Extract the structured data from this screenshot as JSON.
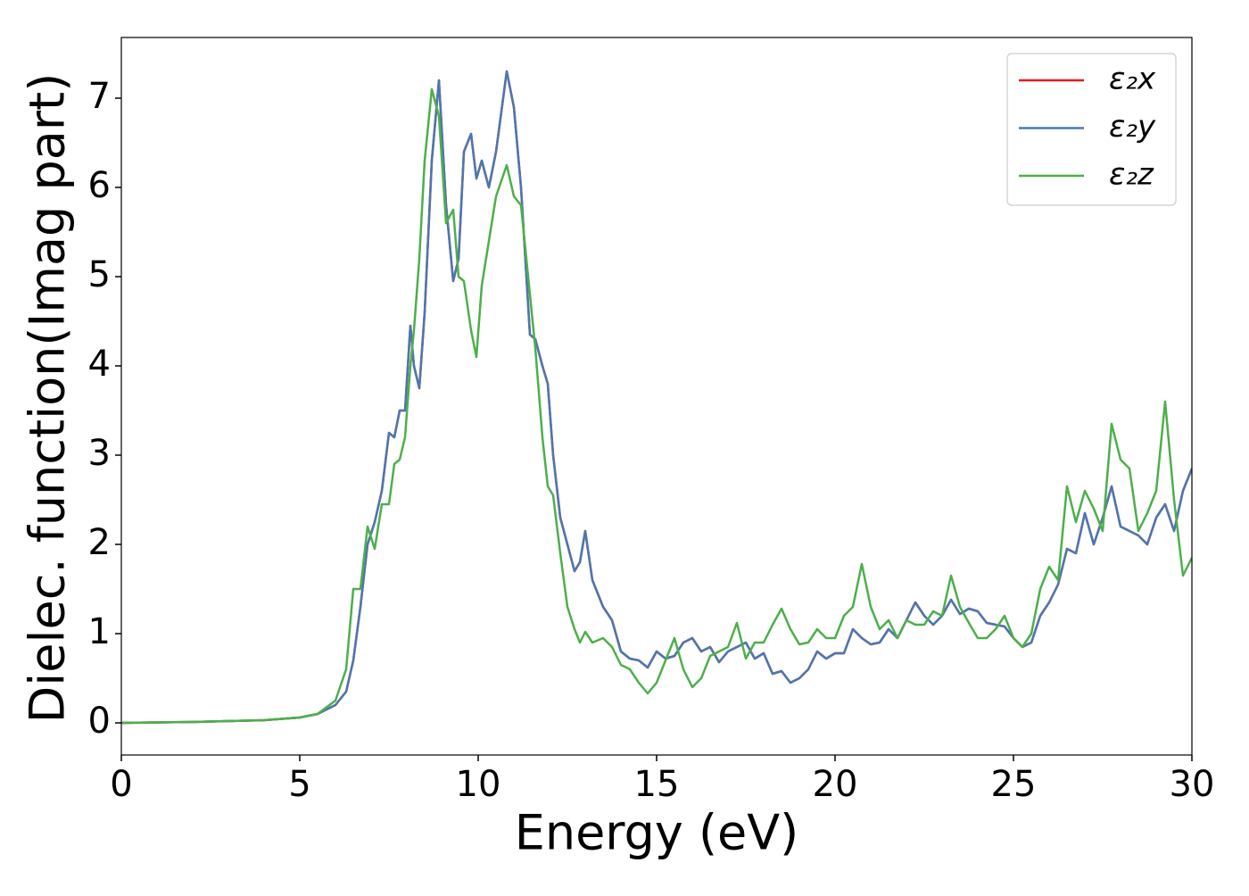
{
  "chart_data": {
    "type": "line",
    "xlabel": "Energy (eV)",
    "ylabel": "Dielec. function(Imag part)",
    "x": [
      0,
      1,
      2,
      3,
      4,
      5,
      5.5,
      6,
      6.3,
      6.5,
      6.7,
      6.9,
      7.1,
      7.3,
      7.5,
      7.65,
      7.8,
      7.95,
      8.1,
      8.2,
      8.35,
      8.5,
      8.7,
      8.9,
      9.1,
      9.3,
      9.45,
      9.6,
      9.8,
      9.95,
      10.1,
      10.3,
      10.5,
      10.8,
      11.0,
      11.2,
      11.45,
      11.6,
      11.8,
      11.95,
      12.1,
      12.3,
      12.5,
      12.7,
      12.85,
      13.0,
      13.2,
      13.5,
      13.75,
      14.0,
      14.25,
      14.5,
      14.75,
      15.0,
      15.25,
      15.5,
      15.75,
      16.0,
      16.25,
      16.5,
      16.75,
      17.0,
      17.25,
      17.5,
      17.75,
      18.0,
      18.25,
      18.5,
      18.75,
      19.0,
      19.25,
      19.5,
      19.75,
      20.0,
      20.25,
      20.5,
      20.75,
      21.0,
      21.25,
      21.5,
      21.75,
      22.0,
      22.25,
      22.5,
      22.75,
      23.0,
      23.25,
      23.5,
      23.75,
      24.0,
      24.25,
      24.5,
      24.75,
      25.0,
      25.25,
      25.5,
      25.75,
      26.0,
      26.25,
      26.5,
      26.75,
      27.0,
      27.25,
      27.5,
      27.75,
      28.0,
      28.25,
      28.5,
      28.75,
      29.0,
      29.25,
      29.5,
      29.75,
      30.0
    ],
    "series": [
      {
        "name": "ε₂x",
        "color": "#e41a1c",
        "values": [
          0,
          0.005,
          0.01,
          0.02,
          0.03,
          0.06,
          0.1,
          0.2,
          0.35,
          0.7,
          1.3,
          2.0,
          2.25,
          2.6,
          3.25,
          3.2,
          3.5,
          3.5,
          4.45,
          4.0,
          3.75,
          4.6,
          6.3,
          7.2,
          5.8,
          4.95,
          5.2,
          6.4,
          6.6,
          6.1,
          6.3,
          6.0,
          6.4,
          7.3,
          6.9,
          6.0,
          4.35,
          4.3,
          4.0,
          3.8,
          3.0,
          2.3,
          2.0,
          1.7,
          1.8,
          2.15,
          1.6,
          1.3,
          1.15,
          0.8,
          0.72,
          0.7,
          0.62,
          0.8,
          0.72,
          0.75,
          0.9,
          0.95,
          0.8,
          0.85,
          0.68,
          0.8,
          0.85,
          0.9,
          0.72,
          0.78,
          0.55,
          0.58,
          0.45,
          0.5,
          0.6,
          0.8,
          0.72,
          0.78,
          0.78,
          1.05,
          0.95,
          0.88,
          0.9,
          1.05,
          0.95,
          1.15,
          1.35,
          1.2,
          1.1,
          1.2,
          1.38,
          1.22,
          1.28,
          1.25,
          1.12,
          1.1,
          1.08,
          0.95,
          0.85,
          0.9,
          1.2,
          1.35,
          1.55,
          1.95,
          1.9,
          2.35,
          2.0,
          2.3,
          2.65,
          2.2,
          2.15,
          2.1,
          2.0,
          2.3,
          2.45,
          2.15,
          2.6,
          2.85
        ]
      },
      {
        "name": "ε₂y",
        "color": "#4a78b0",
        "values": [
          0,
          0.005,
          0.01,
          0.02,
          0.03,
          0.06,
          0.1,
          0.2,
          0.35,
          0.7,
          1.3,
          2.0,
          2.25,
          2.6,
          3.25,
          3.2,
          3.5,
          3.5,
          4.45,
          4.0,
          3.75,
          4.6,
          6.3,
          7.2,
          5.8,
          4.95,
          5.2,
          6.4,
          6.6,
          6.1,
          6.3,
          6.0,
          6.4,
          7.3,
          6.9,
          6.0,
          4.35,
          4.3,
          4.0,
          3.8,
          3.0,
          2.3,
          2.0,
          1.7,
          1.8,
          2.15,
          1.6,
          1.3,
          1.15,
          0.8,
          0.72,
          0.7,
          0.62,
          0.8,
          0.72,
          0.75,
          0.9,
          0.95,
          0.8,
          0.85,
          0.68,
          0.8,
          0.85,
          0.9,
          0.72,
          0.78,
          0.55,
          0.58,
          0.45,
          0.5,
          0.6,
          0.8,
          0.72,
          0.78,
          0.78,
          1.05,
          0.95,
          0.88,
          0.9,
          1.05,
          0.95,
          1.15,
          1.35,
          1.2,
          1.1,
          1.2,
          1.38,
          1.22,
          1.28,
          1.25,
          1.12,
          1.1,
          1.08,
          0.95,
          0.85,
          0.9,
          1.2,
          1.35,
          1.55,
          1.95,
          1.9,
          2.35,
          2.0,
          2.3,
          2.65,
          2.2,
          2.15,
          2.1,
          2.0,
          2.3,
          2.45,
          2.15,
          2.6,
          2.85
        ]
      },
      {
        "name": "ε₂z",
        "color": "#4daf4a",
        "values": [
          0,
          0.005,
          0.01,
          0.02,
          0.03,
          0.06,
          0.1,
          0.25,
          0.6,
          1.5,
          1.5,
          2.2,
          1.95,
          2.45,
          2.45,
          2.9,
          2.95,
          3.2,
          4.0,
          4.4,
          5.2,
          6.3,
          7.1,
          6.8,
          5.6,
          5.75,
          5.0,
          4.95,
          4.4,
          4.1,
          4.9,
          5.4,
          5.9,
          6.25,
          5.9,
          5.8,
          4.8,
          4.2,
          3.2,
          2.65,
          2.55,
          1.9,
          1.3,
          1.05,
          0.9,
          1.02,
          0.9,
          0.95,
          0.85,
          0.65,
          0.6,
          0.45,
          0.33,
          0.45,
          0.7,
          0.95,
          0.6,
          0.4,
          0.5,
          0.75,
          0.8,
          0.85,
          1.12,
          0.72,
          0.9,
          0.9,
          1.1,
          1.28,
          1.05,
          0.88,
          0.9,
          1.05,
          0.95,
          0.95,
          1.2,
          1.3,
          1.78,
          1.3,
          1.05,
          1.15,
          0.95,
          1.15,
          1.1,
          1.1,
          1.25,
          1.2,
          1.65,
          1.3,
          1.12,
          0.95,
          0.95,
          1.05,
          1.2,
          0.95,
          0.85,
          1.0,
          1.5,
          1.75,
          1.6,
          2.65,
          2.25,
          2.6,
          2.4,
          2.15,
          3.35,
          2.95,
          2.85,
          2.15,
          2.35,
          2.6,
          3.6,
          2.5,
          1.65,
          1.85
        ]
      }
    ],
    "xlim": [
      0,
      30
    ],
    "xticks": [
      0,
      5,
      10,
      15,
      20,
      25,
      30
    ],
    "ylim": [
      -0.36,
      7.68
    ],
    "yticks": [
      0,
      1,
      2,
      3,
      4,
      5,
      6,
      7
    ],
    "legend": "upper right",
    "grid": false
  }
}
